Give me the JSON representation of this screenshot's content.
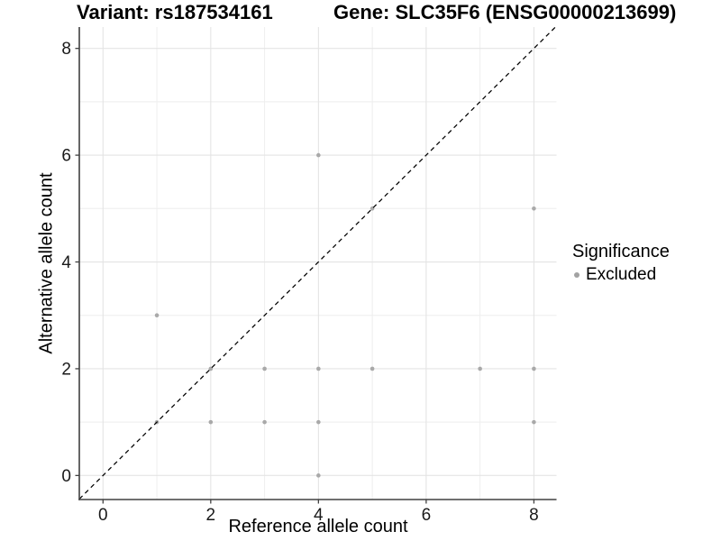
{
  "chart_data": {
    "type": "scatter",
    "title_left": "Variant: rs187534161",
    "title_right": "Gene: SLC35F6 (ENSG00000213699)",
    "xlabel": "Reference allele count",
    "ylabel": "Alternative allele count",
    "xlim": [
      -0.44,
      8.42
    ],
    "ylim": [
      -0.45,
      8.4
    ],
    "x_ticks": [
      0,
      2,
      4,
      6,
      8
    ],
    "y_ticks": [
      0,
      2,
      4,
      6,
      8
    ],
    "grid": {
      "major_lines": [
        0,
        2,
        4,
        6,
        8
      ],
      "minor_lines": [
        1,
        3,
        5,
        7
      ]
    },
    "identity_line": {
      "style": "dashed",
      "slope": 1,
      "intercept": 0,
      "color": "#000000"
    },
    "series": [
      {
        "name": "Excluded",
        "color": "#a9a9a9",
        "points": [
          [
            4,
            0
          ],
          [
            1,
            1
          ],
          [
            2,
            1
          ],
          [
            3,
            1
          ],
          [
            4,
            1
          ],
          [
            8,
            1
          ],
          [
            2,
            2
          ],
          [
            3,
            2
          ],
          [
            4,
            2
          ],
          [
            5,
            2
          ],
          [
            7,
            2
          ],
          [
            8,
            2
          ],
          [
            1,
            3
          ],
          [
            5,
            5
          ],
          [
            8,
            5
          ],
          [
            4,
            6
          ]
        ]
      }
    ],
    "legend": {
      "title": "Significance",
      "position": "right",
      "items": [
        {
          "label": "Excluded",
          "color": "#a2a2a2"
        }
      ]
    }
  },
  "colors": {
    "background": "#ffffff",
    "grid_major": "#e4e4e4",
    "grid_minor": "#eeeeee",
    "axis_line": "#404040",
    "tick_label": "#1a1a1a",
    "text": "#000000"
  }
}
